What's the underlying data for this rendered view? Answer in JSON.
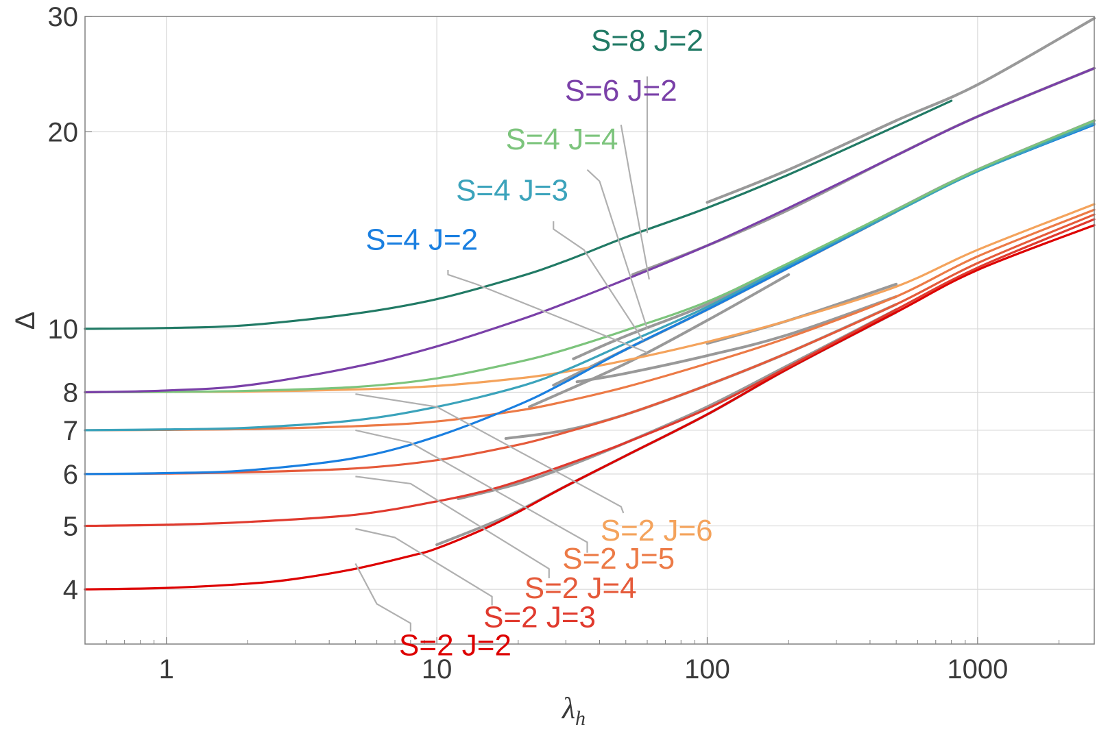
{
  "chart_data": {
    "type": "line",
    "title": "",
    "xlabel": "λ",
    "xlabel_sub": "h",
    "ylabel": "Δ",
    "xscale": "log",
    "yscale": "log",
    "xlim": [
      0.5,
      2700
    ],
    "ylim": [
      3.3,
      30
    ],
    "grid": true,
    "xticks": [
      {
        "value": 1,
        "label": "1"
      },
      {
        "value": 10,
        "label": "10"
      },
      {
        "value": 100,
        "label": "100"
      },
      {
        "value": 1000,
        "label": "1000"
      }
    ],
    "yticks": [
      {
        "value": 4,
        "label": "4"
      },
      {
        "value": 5,
        "label": "5"
      },
      {
        "value": 6,
        "label": "6"
      },
      {
        "value": 7,
        "label": "7"
      },
      {
        "value": 8,
        "label": "8"
      },
      {
        "value": 10,
        "label": "10"
      },
      {
        "value": 20,
        "label": "20"
      },
      {
        "value": 30,
        "label": "30"
      }
    ],
    "series": [
      {
        "name": "S=2 J=2",
        "color": "#dd0000",
        "points": [
          [
            0.5,
            4.0
          ],
          [
            1,
            4.02
          ],
          [
            2,
            4.08
          ],
          [
            3,
            4.15
          ],
          [
            5,
            4.3
          ],
          [
            8,
            4.5
          ],
          [
            10,
            4.62
          ],
          [
            15,
            4.95
          ],
          [
            20,
            5.25
          ],
          [
            30,
            5.75
          ],
          [
            50,
            6.4
          ],
          [
            100,
            7.4
          ],
          [
            200,
            8.7
          ],
          [
            500,
            10.6
          ],
          [
            1000,
            12.3
          ],
          [
            2700,
            14.4
          ]
        ]
      },
      {
        "name": "S=2 J=3",
        "color": "#e03a2e",
        "points": [
          [
            0.5,
            5.0
          ],
          [
            1,
            5.02
          ],
          [
            2,
            5.07
          ],
          [
            5,
            5.2
          ],
          [
            10,
            5.45
          ],
          [
            15,
            5.65
          ],
          [
            20,
            5.85
          ],
          [
            30,
            6.2
          ],
          [
            50,
            6.7
          ],
          [
            100,
            7.55
          ],
          [
            200,
            8.75
          ],
          [
            500,
            10.7
          ],
          [
            1000,
            12.4
          ],
          [
            2700,
            14.7
          ]
        ]
      },
      {
        "name": "S=2 J=4",
        "color": "#e55a3a",
        "points": [
          [
            0.5,
            6.0
          ],
          [
            1,
            6.01
          ],
          [
            2,
            6.04
          ],
          [
            5,
            6.12
          ],
          [
            10,
            6.3
          ],
          [
            20,
            6.65
          ],
          [
            30,
            6.95
          ],
          [
            50,
            7.4
          ],
          [
            100,
            8.2
          ],
          [
            200,
            9.2
          ],
          [
            500,
            10.9
          ],
          [
            1000,
            12.6
          ],
          [
            2700,
            14.95
          ]
        ]
      },
      {
        "name": "S=2 J=5",
        "color": "#ec7a46",
        "points": [
          [
            0.5,
            7.0
          ],
          [
            1,
            7.01
          ],
          [
            2,
            7.03
          ],
          [
            5,
            7.1
          ],
          [
            10,
            7.22
          ],
          [
            20,
            7.5
          ],
          [
            30,
            7.75
          ],
          [
            50,
            8.15
          ],
          [
            100,
            8.85
          ],
          [
            200,
            9.7
          ],
          [
            500,
            11.2
          ],
          [
            1000,
            12.9
          ],
          [
            2700,
            15.2
          ]
        ]
      },
      {
        "name": "S=2 J=6",
        "color": "#f4a35c",
        "points": [
          [
            0.5,
            8.0
          ],
          [
            1,
            8.01
          ],
          [
            2,
            8.02
          ],
          [
            5,
            8.08
          ],
          [
            10,
            8.18
          ],
          [
            20,
            8.4
          ],
          [
            30,
            8.6
          ],
          [
            50,
            8.95
          ],
          [
            100,
            9.55
          ],
          [
            200,
            10.3
          ],
          [
            500,
            11.6
          ],
          [
            1000,
            13.2
          ],
          [
            2700,
            15.5
          ]
        ]
      },
      {
        "name": "S=4 J=2",
        "color": "#1a7fe0",
        "points": [
          [
            0.5,
            6.0
          ],
          [
            1,
            6.02
          ],
          [
            2,
            6.08
          ],
          [
            5,
            6.35
          ],
          [
            10,
            6.85
          ],
          [
            20,
            7.65
          ],
          [
            30,
            8.3
          ],
          [
            50,
            9.3
          ],
          [
            100,
            10.7
          ],
          [
            200,
            12.4
          ],
          [
            500,
            15.1
          ],
          [
            1000,
            17.4
          ],
          [
            2700,
            20.5
          ]
        ]
      },
      {
        "name": "S=4 J=3",
        "color": "#3ba3bb",
        "points": [
          [
            0.5,
            7.0
          ],
          [
            1,
            7.02
          ],
          [
            2,
            7.06
          ],
          [
            5,
            7.25
          ],
          [
            10,
            7.6
          ],
          [
            20,
            8.15
          ],
          [
            30,
            8.65
          ],
          [
            50,
            9.5
          ],
          [
            100,
            10.8
          ],
          [
            200,
            12.5
          ],
          [
            500,
            15.1
          ],
          [
            1000,
            17.4
          ],
          [
            2700,
            20.6
          ]
        ]
      },
      {
        "name": "S=4 J=4",
        "color": "#7cc47c",
        "points": [
          [
            0.5,
            8.0
          ],
          [
            1,
            8.01
          ],
          [
            2,
            8.04
          ],
          [
            5,
            8.15
          ],
          [
            10,
            8.4
          ],
          [
            20,
            8.9
          ],
          [
            30,
            9.3
          ],
          [
            50,
            9.95
          ],
          [
            100,
            11.0
          ],
          [
            200,
            12.6
          ],
          [
            500,
            15.2
          ],
          [
            1000,
            17.5
          ],
          [
            2700,
            20.8
          ]
        ]
      },
      {
        "name": "S=6 J=2",
        "color": "#7a40a8",
        "points": [
          [
            0.5,
            8.0
          ],
          [
            1,
            8.05
          ],
          [
            2,
            8.2
          ],
          [
            5,
            8.75
          ],
          [
            10,
            9.4
          ],
          [
            20,
            10.3
          ],
          [
            30,
            10.95
          ],
          [
            50,
            11.9
          ],
          [
            100,
            13.4
          ],
          [
            200,
            15.3
          ],
          [
            500,
            18.4
          ],
          [
            1000,
            21.1
          ],
          [
            2700,
            25.0
          ]
        ]
      },
      {
        "name": "S=8 J=2",
        "color": "#217a65",
        "points": [
          [
            0.5,
            10.0
          ],
          [
            1,
            10.03
          ],
          [
            2,
            10.13
          ],
          [
            5,
            10.55
          ],
          [
            10,
            11.1
          ],
          [
            20,
            12.0
          ],
          [
            30,
            12.7
          ],
          [
            50,
            13.8
          ],
          [
            100,
            15.3
          ],
          [
            200,
            17.2
          ],
          [
            500,
            20.4
          ],
          [
            800,
            22.3
          ]
        ]
      }
    ],
    "asymptotes": [
      {
        "points": [
          [
            100,
            15.6
          ],
          [
            200,
            17.5
          ],
          [
            500,
            20.8
          ],
          [
            1000,
            23.6
          ],
          [
            2700,
            29.8
          ]
        ]
      },
      {
        "points": [
          [
            53,
            12.1
          ],
          [
            100,
            13.4
          ],
          [
            200,
            15.2
          ],
          [
            500,
            18.4
          ],
          [
            1000,
            21.1
          ],
          [
            2700,
            25.0
          ]
        ]
      },
      {
        "points": [
          [
            32,
            9.0
          ],
          [
            50,
            9.75
          ],
          [
            100,
            10.9
          ],
          [
            200,
            12.5
          ],
          [
            500,
            15.2
          ],
          [
            1000,
            17.5
          ],
          [
            2700,
            20.8
          ]
        ]
      },
      {
        "points": [
          [
            27,
            8.2
          ],
          [
            50,
            9.3
          ],
          [
            100,
            10.7
          ],
          [
            200,
            12.4
          ],
          [
            500,
            15.1
          ]
        ]
      },
      {
        "points": [
          [
            22,
            7.6
          ],
          [
            50,
            8.85
          ],
          [
            100,
            10.3
          ],
          [
            200,
            12.1
          ]
        ]
      },
      {
        "points": [
          [
            100,
            9.5
          ],
          [
            200,
            10.3
          ],
          [
            500,
            11.7
          ]
        ]
      },
      {
        "points": [
          [
            33,
            8.3
          ],
          [
            50,
            8.55
          ],
          [
            100,
            9.1
          ],
          [
            200,
            9.8
          ],
          [
            500,
            11.2
          ]
        ]
      },
      {
        "points": [
          [
            18,
            6.8
          ],
          [
            30,
            7.0
          ],
          [
            50,
            7.4
          ],
          [
            100,
            8.2
          ],
          [
            200,
            9.2
          ],
          [
            500,
            10.9
          ]
        ]
      },
      {
        "points": [
          [
            12,
            5.5
          ],
          [
            20,
            5.8
          ],
          [
            30,
            6.15
          ],
          [
            50,
            6.7
          ],
          [
            100,
            7.6
          ],
          [
            200,
            8.8
          ],
          [
            500,
            10.7
          ]
        ]
      },
      {
        "points": [
          [
            10,
            4.68
          ],
          [
            15,
            5.0
          ],
          [
            20,
            5.27
          ],
          [
            30,
            5.75
          ],
          [
            50,
            6.4
          ],
          [
            100,
            7.4
          ],
          [
            200,
            8.7
          ],
          [
            500,
            10.6
          ]
        ]
      }
    ],
    "annotations": [
      {
        "text": "S=8 J=2",
        "color": "#217a65",
        "x": 60,
        "y": 26.6,
        "anchor": "middle",
        "leader": [
          [
            60,
            24.3
          ],
          [
            60,
            14.0
          ]
        ]
      },
      {
        "text": "S=6 J=2",
        "color": "#7a40a8",
        "x": 48,
        "y": 22.3,
        "anchor": "middle",
        "leader": [
          [
            48,
            20.5
          ],
          [
            52,
            17.0
          ],
          [
            61,
            11.9
          ]
        ]
      },
      {
        "text": "S=4 J=4",
        "color": "#7cc47c",
        "x": 29,
        "y": 18.8,
        "anchor": "middle",
        "leader": [
          [
            36,
            17.5
          ],
          [
            40,
            16.8
          ],
          [
            60,
            10.0
          ]
        ]
      },
      {
        "text": "S=4 J=3",
        "color": "#3ba3bb",
        "x": 19,
        "y": 15.7,
        "anchor": "middle",
        "leader": [
          [
            27,
            14.6
          ],
          [
            27,
            14.2
          ],
          [
            35,
            13.2
          ],
          [
            58,
            9.6
          ]
        ]
      },
      {
        "text": "S=4 J=2",
        "color": "#1a7fe0",
        "x": 8.8,
        "y": 13.2,
        "anchor": "middle",
        "leader": [
          [
            11,
            12.3
          ],
          [
            11,
            12.1
          ],
          [
            14,
            11.7
          ],
          [
            60,
            9.2
          ]
        ]
      },
      {
        "text": "S=2 J=6",
        "color": "#f4a35c",
        "x": 65,
        "y": 4.75,
        "anchor": "middle",
        "leader": [
          [
            49,
            5.23
          ],
          [
            48,
            5.35
          ],
          [
            10,
            7.6
          ],
          [
            5,
            7.95
          ]
        ]
      },
      {
        "text": "S=2 J=5",
        "color": "#ec7a46",
        "x": 47,
        "y": 4.3,
        "anchor": "middle",
        "leader": [
          [
            36,
            4.55
          ],
          [
            36,
            4.72
          ],
          [
            8,
            6.7
          ],
          [
            5,
            7.0
          ]
        ]
      },
      {
        "text": "S=2 J=4",
        "color": "#e55a3a",
        "x": 34,
        "y": 3.88,
        "anchor": "middle",
        "leader": [
          [
            26,
            4.16
          ],
          [
            26,
            4.3
          ],
          [
            8,
            5.8
          ],
          [
            5,
            5.95
          ]
        ]
      },
      {
        "text": "S=2 J=3",
        "color": "#e03a2e",
        "x": 24,
        "y": 3.5,
        "anchor": "middle",
        "leader": [
          [
            16,
            3.78
          ],
          [
            16,
            3.9
          ],
          [
            7,
            4.8
          ],
          [
            5,
            4.95
          ]
        ]
      },
      {
        "text": "S=2 J=2",
        "color": "#dd0000",
        "x": 11.7,
        "y": 3.17,
        "anchor": "middle",
        "leader": [
          [
            8,
            3.45
          ],
          [
            8,
            3.55
          ],
          [
            6,
            3.8
          ],
          [
            5,
            4.38
          ]
        ]
      }
    ]
  }
}
